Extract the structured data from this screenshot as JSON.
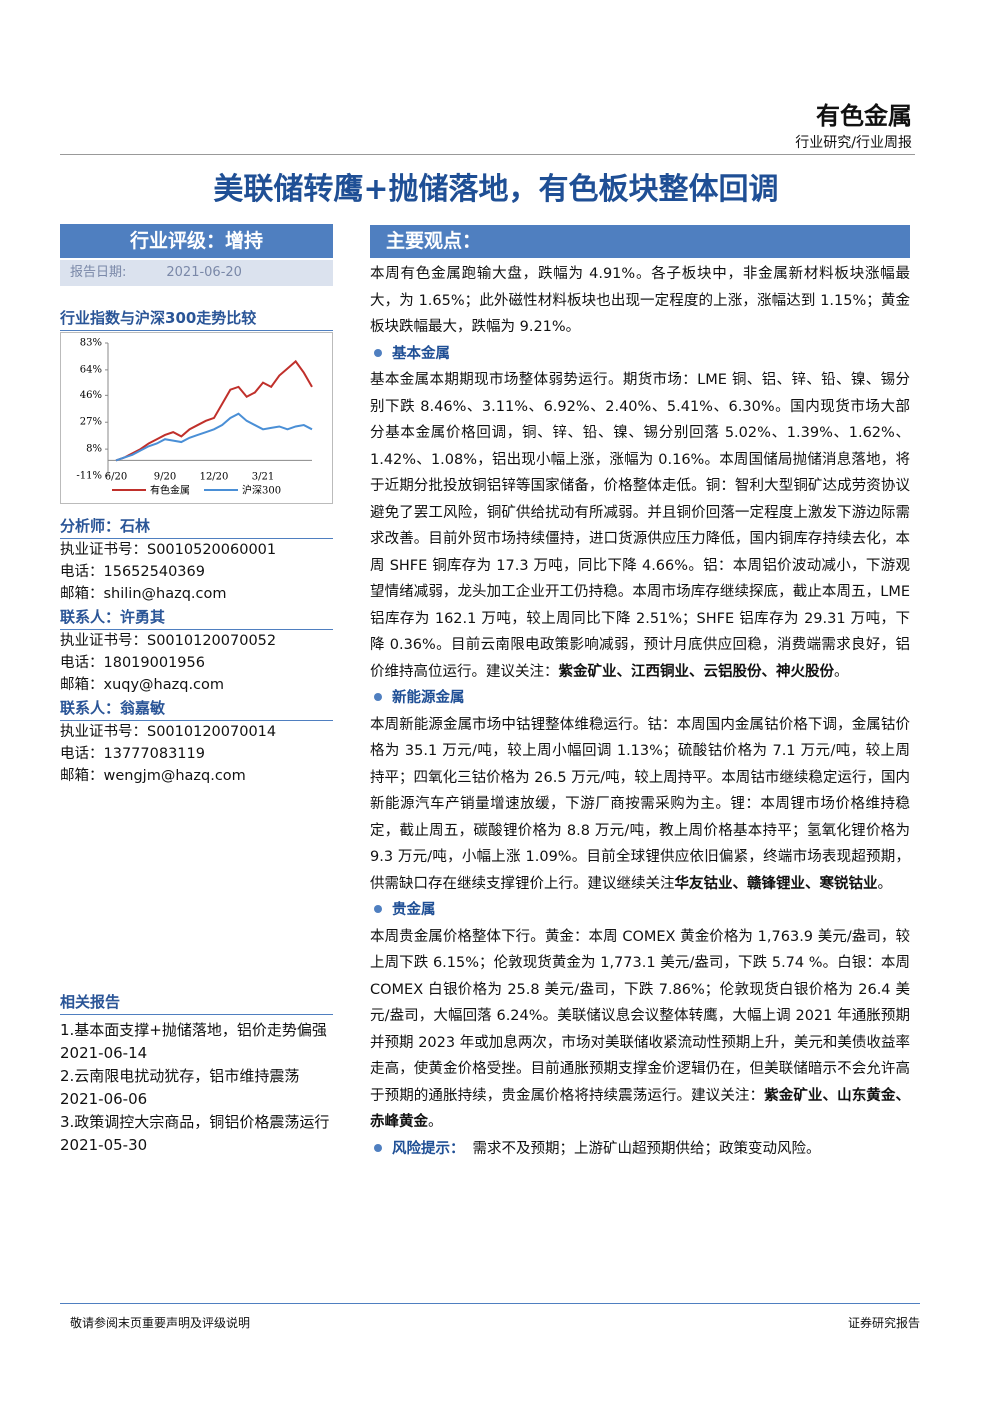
{
  "header": {
    "sector": "有色金属",
    "subtitle": "行业研究/行业周报"
  },
  "title": "美联储转鹰+抛储落地，有色板块整体回调",
  "rating": {
    "label": "行业评级：增持",
    "date_label": "报告日期:",
    "date": "2021-06-20"
  },
  "chart_title": "行业指数与沪深300走势比较",
  "chart_data": {
    "type": "line",
    "categories": [
      "6/20",
      null,
      null,
      null,
      null,
      null,
      "9/20",
      null,
      null,
      null,
      null,
      null,
      "12/20",
      null,
      null,
      null,
      null,
      null,
      "3/21",
      null,
      null,
      null,
      null,
      null,
      null
    ],
    "series": [
      {
        "name": "有色金属",
        "color": "#c0302b",
        "values": [
          0,
          2,
          5,
          8,
          12,
          15,
          18,
          20,
          17,
          22,
          25,
          28,
          30,
          40,
          50,
          52,
          45,
          48,
          55,
          52,
          60,
          65,
          70,
          62,
          52
        ]
      },
      {
        "name": "沪深300",
        "color": "#4a8fd6",
        "values": [
          0,
          2,
          4,
          7,
          10,
          12,
          15,
          14,
          13,
          16,
          18,
          20,
          22,
          25,
          30,
          33,
          28,
          25,
          22,
          23,
          24,
          22,
          24,
          25,
          22
        ]
      }
    ],
    "ylim": [
      -11,
      83
    ],
    "yticks": [
      {
        "value": -11,
        "label": "-11%"
      },
      {
        "value": 8,
        "label": "8%"
      },
      {
        "value": 27,
        "label": "27%"
      },
      {
        "value": 46,
        "label": "46%"
      },
      {
        "value": 64,
        "label": "64%"
      },
      {
        "value": 83,
        "label": "83%"
      }
    ]
  },
  "contacts": [
    {
      "heading": "分析师：石林",
      "cert": "执业证书号：S0010520060001",
      "phone": "电话：15652540369",
      "email": "邮箱：shilin@hazq.com"
    },
    {
      "heading": "联系人：许勇其",
      "cert": "执业证书号：S0010120070052",
      "phone": "电话：18019001956",
      "email": "邮箱：xuqy@hazq.com"
    },
    {
      "heading": "联系人：翁嘉敏",
      "cert": "执业证书号：S0010120070014",
      "phone": "电话：13777083119",
      "email": "邮箱：wengjm@hazq.com"
    }
  ],
  "related": {
    "heading": "相关报告",
    "items": [
      "1.基本面支撑+抛储落地，铝价走势偏强  2021-06-14",
      "2.云南限电扰动犹存，铝市维持震荡 2021-06-06",
      "3.政策调控大宗商品，铜铝价格震荡运行 2021-05-30"
    ]
  },
  "main": {
    "heading": "主要观点：",
    "intro": "本周有色金属跑输大盘，跌幅为 4.91%。各子板块中，非金属新材料板块涨幅最大，为 1.65%；此外磁性材料板块也出现一定程度的上涨，涨幅达到 1.15%；黄金板块跌幅最大，跌幅为 9.21%。",
    "sections": [
      {
        "heading": "基本金属",
        "text": "基本金属本期期现市场整体弱势运行。期货市场：LME 铜、铝、锌、铅、镍、锡分别下跌 8.46%、3.11%、6.92%、2.40%、5.41%、6.30%。国内现货市场大部分基本金属价格回调，铜、锌、铅、镍、锡分别回落 5.02%、1.39%、1.62%、1.42%、1.08%，铝出现小幅上涨，涨幅为 0.16%。本周国储局抛储消息落地，将于近期分批投放铜铝锌等国家储备，价格整体走低。铜：智利大型铜矿达成劳资协议避免了罢工风险，铜矿供给扰动有所减弱。并且铜价回落一定程度上激发下游边际需求改善。目前外贸市场持续僵持，进口货源供应压力降低，国内铜库存持续去化，本周 SHFE 铜库存为 17.3 万吨，同比下降 4.66%。铝：本周铝价波动减小，下游观望情绪减弱，龙头加工企业开工仍持稳。本周市场库存继续探底，截止本周五，LME 铝库存为 162.1 万吨，较上周同比下降 2.51%；SHFE 铝库存为 29.31 万吨，下降 0.36%。目前云南限电政策影响减弱，预计月底供应回稳，消费端需求良好，铝价维持高位运行。建议关注：",
        "bold": "紫金矿业、江西铜业、云铝股份、神火股份",
        "end": "。"
      },
      {
        "heading": "新能源金属",
        "text": "本周新能源金属市场中钴锂整体维稳运行。钴：本周国内金属钴价格下调，金属钴价格为 35.1 万元/吨，较上周小幅回调 1.13%；硫酸钴价格为 7.1 万元/吨，较上周持平；四氧化三钴价格为 26.5 万元/吨，较上周持平。本周钴市继续稳定运行，国内新能源汽车产销量增速放缓，下游厂商按需采购为主。锂：本周锂市场价格维持稳定，截止周五，碳酸锂价格为 8.8 万元/吨，教上周价格基本持平；氢氧化锂价格为 9.3 万元/吨，小幅上涨 1.09%。目前全球锂供应依旧偏紧，终端市场表现超预期，供需缺口存在继续支撑锂价上行。建议继续关注",
        "bold": "华友钴业、赣锋锂业、寒锐钴业",
        "end": "。"
      },
      {
        "heading": "贵金属",
        "text": "本周贵金属价格整体下行。黄金：本周 COMEX 黄金价格为 1,763.9 美元/盎司，较上周下跌 6.15%；伦敦现货黄金为 1,773.1 美元/盎司，下跌 5.74 %。白银：本周 COMEX 白银价格为 25.8 美元/盎司，下跌 7.86%；伦敦现货白银价格为 26.4 美元/盎司，大幅回落 6.24%。美联储议息会议整体转鹰，大幅上调 2021 年通胀预期并预期 2023 年或加息两次，市场对美联储收紧流动性预期上升，美元和美债收益率走高，使黄金价格受挫。目前通胀预期支撑金价逻辑仍在，但美联储暗示不会允许高于预期的通胀持续，贵金属价格将持续震荡运行。建议关注：",
        "bold": "紫金矿业、山东黄金、赤峰黄金",
        "end": "。"
      }
    ],
    "risk_heading": "风险提示：",
    "risk": "需求不及预期；上游矿山超预期供给；政策变动风险。"
  },
  "footer": {
    "left": "敬请参阅末页重要声明及评级说明",
    "right": "证券研究报告"
  }
}
